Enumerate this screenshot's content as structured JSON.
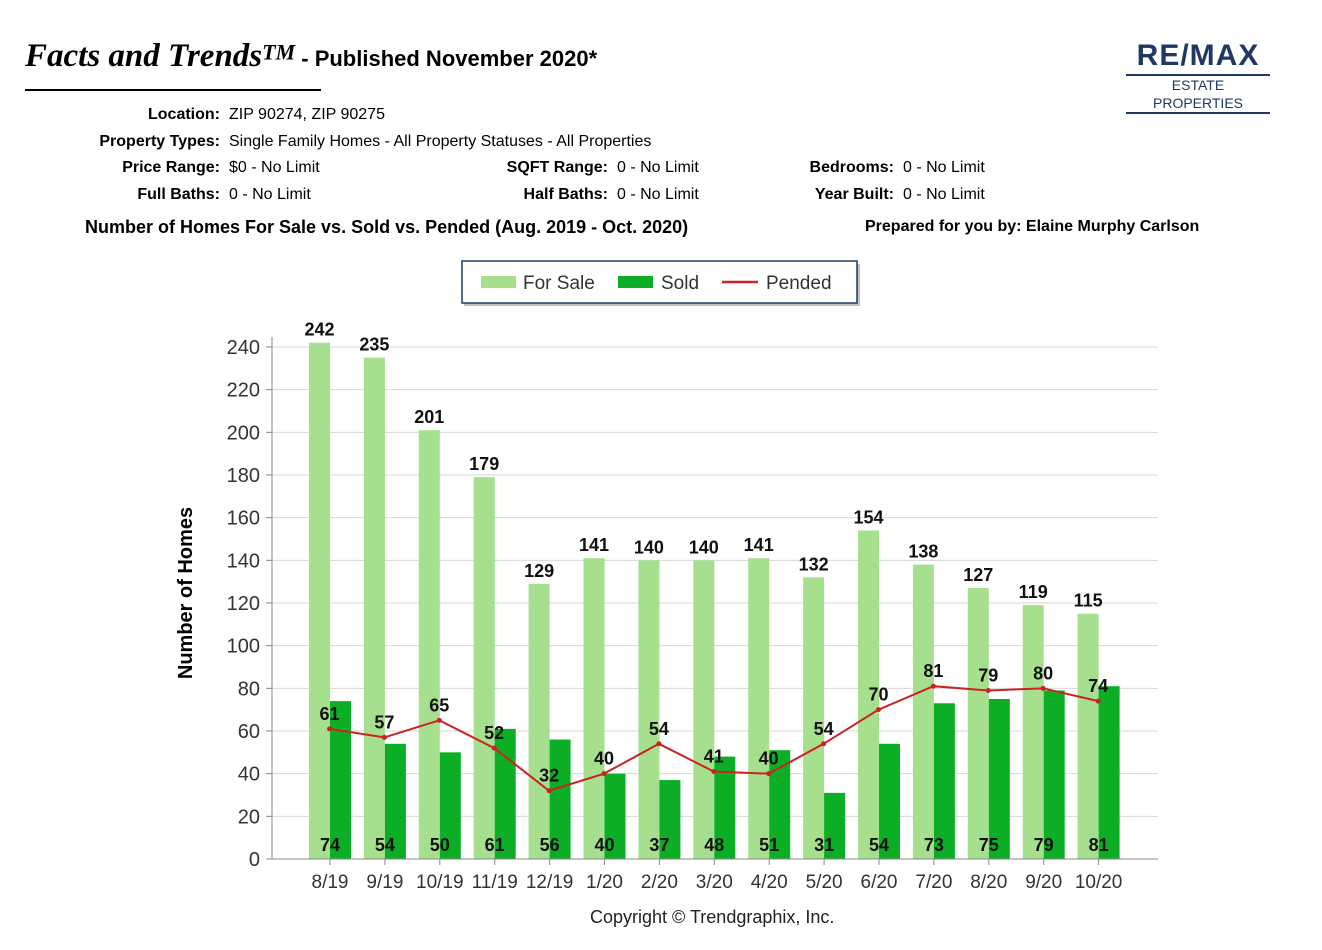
{
  "header": {
    "title_main": "Facts and Trends",
    "title_sup": "TM",
    "title_rest": " - Published November 2020*"
  },
  "logo": {
    "main": "RE/MAX",
    "sub": "ESTATE PROPERTIES",
    "color": "#1f3864"
  },
  "criteria": {
    "location_label": "Location:",
    "location_value": "ZIP 90274, ZIP 90275",
    "property_types_label": "Property Types:",
    "property_types_value": "Single Family Homes - All Property Statuses - All Properties",
    "price_range_label": "Price Range:",
    "price_range_value": "$0 - No Limit",
    "sqft_range_label": "SQFT Range:",
    "sqft_range_value": "0 - No Limit",
    "bedrooms_label": "Bedrooms:",
    "bedrooms_value": "0 - No Limit",
    "full_baths_label": "Full Baths:",
    "full_baths_value": "0 - No Limit",
    "half_baths_label": "Half Baths:",
    "half_baths_value": "0 - No Limit",
    "year_built_label": "Year Built:",
    "year_built_value": "0 - No Limit"
  },
  "chart_title": "Number of Homes For Sale vs. Sold vs. Pended (Aug. 2019 - Oct. 2020)",
  "prepared_by": "Prepared for you by: Elaine Murphy Carlson",
  "copyright": "Copyright © Trendgraphix, Inc.",
  "chart_data": {
    "type": "bar",
    "categories": [
      "8/19",
      "9/19",
      "10/19",
      "11/19",
      "12/19",
      "1/20",
      "2/20",
      "3/20",
      "4/20",
      "5/20",
      "6/20",
      "7/20",
      "8/20",
      "9/20",
      "10/20"
    ],
    "series": [
      {
        "name": "For Sale",
        "type": "bar",
        "color": "#a6e08f",
        "values": [
          242,
          235,
          201,
          179,
          129,
          141,
          140,
          140,
          141,
          132,
          154,
          138,
          127,
          119,
          115
        ]
      },
      {
        "name": "Sold",
        "type": "bar",
        "color": "#0cae26",
        "values": [
          74,
          54,
          50,
          61,
          56,
          40,
          37,
          48,
          51,
          31,
          54,
          73,
          75,
          79,
          81
        ]
      },
      {
        "name": "Pended",
        "type": "line",
        "color": "#cc2222",
        "values": [
          61,
          57,
          65,
          52,
          32,
          40,
          54,
          41,
          40,
          54,
          70,
          81,
          79,
          80,
          74
        ]
      }
    ],
    "ylabel": "Number of Homes",
    "xlabel": "",
    "ylim": [
      0,
      240
    ],
    "yticks": [
      0,
      20,
      40,
      60,
      80,
      100,
      120,
      140,
      160,
      180,
      200,
      220,
      240
    ],
    "grid": true,
    "legend_position": "top-center"
  }
}
